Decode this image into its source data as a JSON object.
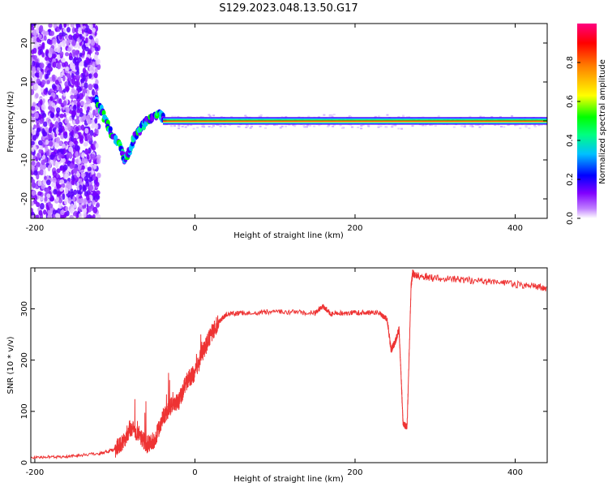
{
  "title": "S129.2023.048.13.50.G17",
  "chart_data": [
    {
      "type": "heatmap",
      "xlabel": "Height of straight line (km)",
      "ylabel": "Frequency (Hz)",
      "xlim": [
        -205,
        440
      ],
      "ylim": [
        -25,
        25
      ],
      "xticks": [
        -200,
        0,
        200,
        400
      ],
      "xtick_labels": [
        "-200",
        "0",
        "200",
        "400"
      ],
      "yticks": [
        -20,
        -10,
        0,
        10,
        20
      ],
      "ytick_labels": [
        "-20",
        "-10",
        "0",
        "10",
        "20"
      ],
      "grid": false,
      "colorbar": {
        "label": "Normalized spectral amplitude",
        "range": [
          0,
          1
        ],
        "ticks": [
          0.0,
          0.2,
          0.4,
          0.6,
          0.8
        ],
        "tick_labels": [
          "0.0",
          "0.2",
          "0.4",
          "0.6",
          "0.8"
        ],
        "colormap": [
          "#ffffff",
          "#c080ff",
          "#8000ff",
          "#0000ff",
          "#00c0ff",
          "#00ff80",
          "#00ff00",
          "#ffff00",
          "#ff8000",
          "#ff0000",
          "#ff0080"
        ]
      },
      "noise_region_x": [
        -205,
        -120
      ],
      "trace": {
        "x": [
          -125,
          -115,
          -105,
          -95,
          -88,
          -82,
          -75,
          -68,
          -60,
          -52,
          -45,
          -38
        ],
        "y": [
          6,
          2,
          -3,
          -6,
          -10,
          -8,
          -4,
          -2,
          0,
          1,
          2,
          0
        ]
      },
      "carrier": {
        "x_start": -40,
        "x_end": 440,
        "frequency": 0
      }
    },
    {
      "type": "line",
      "xlabel": "Height of straight line (km)",
      "ylabel": "SNR (10 * v/v)",
      "xlim": [
        -205,
        440
      ],
      "ylim": [
        0,
        380
      ],
      "xticks": [
        -200,
        0,
        200,
        400
      ],
      "xtick_labels": [
        "-200",
        "0",
        "200",
        "400"
      ],
      "yticks": [
        0,
        100,
        200,
        300
      ],
      "ytick_labels": [
        "0",
        "100",
        "200",
        "300"
      ],
      "grid": false,
      "series": [
        {
          "color": "#ee3333",
          "x": [
            -205,
            -160,
            -120,
            -100,
            -90,
            -80,
            -70,
            -60,
            -50,
            -40,
            -30,
            -20,
            -10,
            0,
            10,
            20,
            30,
            40,
            60,
            100,
            150,
            160,
            170,
            200,
            230,
            240,
            245,
            250,
            255,
            258,
            260,
            265,
            270,
            272,
            275,
            300,
            350,
            400,
            440
          ],
          "values": [
            10,
            12,
            18,
            25,
            40,
            70,
            55,
            35,
            45,
            90,
            110,
            120,
            160,
            175,
            215,
            250,
            275,
            290,
            292,
            295,
            292,
            305,
            290,
            293,
            292,
            280,
            220,
            235,
            260,
            150,
            75,
            70,
            345,
            370,
            365,
            360,
            355,
            348,
            340
          ]
        }
      ]
    }
  ]
}
